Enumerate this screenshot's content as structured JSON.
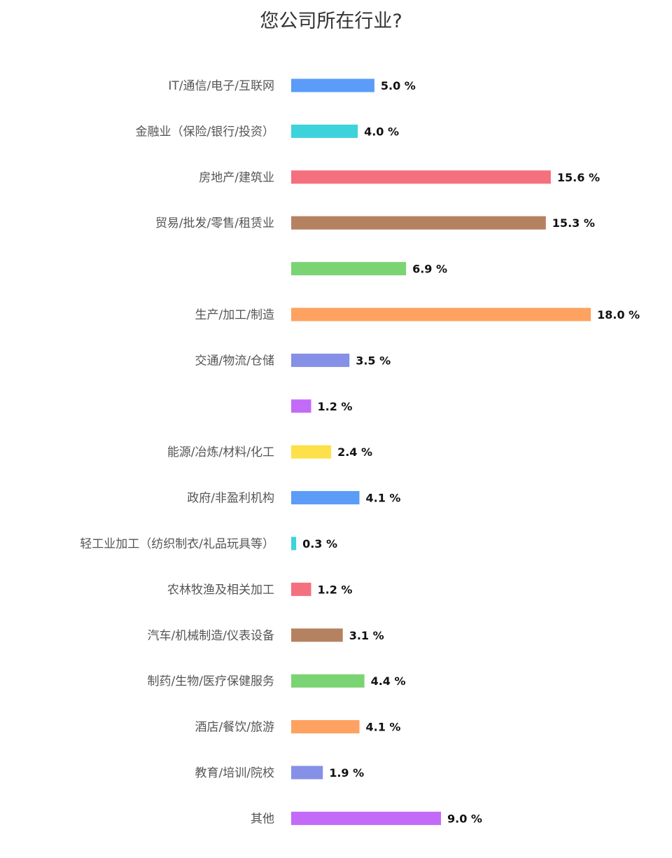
{
  "chart_data": {
    "type": "bar",
    "orientation": "horizontal",
    "title": "您公司所在行业?",
    "categories": [
      "IT/通信/电子/互联网",
      "金融业（保险/银行/投资）",
      "房地产/建筑业",
      "贸易/批发/零售/租赁业",
      "",
      "生产/加工/制造",
      "交通/物流/仓储",
      "",
      "能源/冶炼/材料/化工",
      "政府/非盈利机构",
      "轻工业加工（纺织制衣/礼品玩具等）",
      "农林牧渔及相关加工",
      "汽车/机械制造/仪表设备",
      "制药/生物/医疗保健服务",
      "酒店/餐饮/旅游",
      "教育/培训/院校",
      "其他"
    ],
    "values": [
      5.0,
      4.0,
      15.6,
      15.3,
      6.9,
      18.0,
      3.5,
      1.2,
      2.4,
      4.1,
      0.3,
      1.2,
      3.1,
      4.4,
      4.1,
      1.9,
      9.0
    ],
    "value_labels": [
      "5.0 %",
      "4.0 %",
      "15.6 %",
      "15.3 %",
      "6.9 %",
      "18.0 %",
      "3.5 %",
      "1.2 %",
      "2.4 %",
      "4.1 %",
      "0.3 %",
      "1.2 %",
      "3.1 %",
      "4.4 %",
      "4.1 %",
      "1.9 %",
      "9.0 %"
    ],
    "colors": [
      "#5a9cf8",
      "#3dd3db",
      "#f4707f",
      "#b58261",
      "#7bd474",
      "#fea261",
      "#8590e6",
      "#c36bf8",
      "#fde04a",
      "#5a9cf8",
      "#3dd3db",
      "#f4707f",
      "#b58261",
      "#7bd474",
      "#fea261",
      "#8590e6",
      "#c36bf8"
    ],
    "xlim": [
      0,
      18.0
    ],
    "grid": false,
    "legend": "none",
    "xlabel": "",
    "ylabel": ""
  }
}
